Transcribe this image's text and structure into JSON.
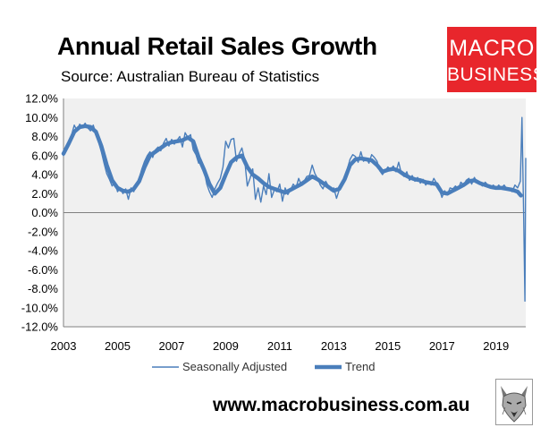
{
  "header": {
    "title": "Annual Retail Sales Growth",
    "subtitle": "Source: Australian Bureau of Statistics"
  },
  "logo": {
    "line1": "MACRO",
    "line2": "BUSINESS",
    "color": "#e8262c"
  },
  "footer": {
    "website": "www.macrobusiness.com.au",
    "mascot_icon": "wolf-icon"
  },
  "chart_data": {
    "type": "line",
    "title": "Annual Retail Sales Growth",
    "subtitle": "Source: Australian Bureau of Statistics",
    "xlabel": "",
    "ylabel": "",
    "xlim": [
      2003,
      2020.1
    ],
    "ylim": [
      -12,
      12
    ],
    "x_ticks": [
      2003,
      2005,
      2007,
      2009,
      2011,
      2013,
      2015,
      2017,
      2019
    ],
    "y_ticks": [
      12,
      10,
      8,
      6,
      4,
      2,
      0,
      -2,
      -4,
      -6,
      -8,
      -10,
      -12
    ],
    "y_tick_labels": [
      "12.0%",
      "10.0%",
      "8.0%",
      "6.0%",
      "4.0%",
      "2.0%",
      "0.0%",
      "-2.0%",
      "-4.0%",
      "-6.0%",
      "-8.0%",
      "-10.0%",
      "-12.0%"
    ],
    "grid": false,
    "plot_background": "#f0f0f0",
    "line_color": "#4a7ebb",
    "legend": "bottom",
    "series": [
      {
        "name": "Seasonally Adjusted",
        "style": "thin",
        "points": [
          [
            2003.0,
            6.0
          ],
          [
            2003.1,
            6.6
          ],
          [
            2003.2,
            7.5
          ],
          [
            2003.3,
            8.2
          ],
          [
            2003.4,
            9.2
          ],
          [
            2003.5,
            8.6
          ],
          [
            2003.6,
            9.3
          ],
          [
            2003.7,
            9.0
          ],
          [
            2003.8,
            9.4
          ],
          [
            2003.9,
            8.9
          ],
          [
            2004.0,
            8.6
          ],
          [
            2004.1,
            9.2
          ],
          [
            2004.2,
            8.3
          ],
          [
            2004.3,
            7.4
          ],
          [
            2004.4,
            6.4
          ],
          [
            2004.5,
            5.2
          ],
          [
            2004.6,
            4.1
          ],
          [
            2004.7,
            3.5
          ],
          [
            2004.8,
            2.8
          ],
          [
            2004.9,
            3.2
          ],
          [
            2005.0,
            2.2
          ],
          [
            2005.1,
            2.6
          ],
          [
            2005.2,
            2.0
          ],
          [
            2005.3,
            2.5
          ],
          [
            2005.4,
            1.4
          ],
          [
            2005.5,
            2.6
          ],
          [
            2005.6,
            2.2
          ],
          [
            2005.7,
            3.0
          ],
          [
            2005.8,
            3.6
          ],
          [
            2005.9,
            4.6
          ],
          [
            2006.0,
            5.4
          ],
          [
            2006.1,
            6.0
          ],
          [
            2006.2,
            6.4
          ],
          [
            2006.3,
            5.8
          ],
          [
            2006.4,
            6.6
          ],
          [
            2006.5,
            6.9
          ],
          [
            2006.6,
            6.5
          ],
          [
            2006.7,
            7.3
          ],
          [
            2006.8,
            7.8
          ],
          [
            2006.9,
            7.0
          ],
          [
            2007.0,
            7.7
          ],
          [
            2007.1,
            7.2
          ],
          [
            2007.2,
            7.6
          ],
          [
            2007.3,
            8.0
          ],
          [
            2007.4,
            6.9
          ],
          [
            2007.5,
            8.4
          ],
          [
            2007.6,
            7.9
          ],
          [
            2007.7,
            8.2
          ],
          [
            2007.8,
            6.6
          ],
          [
            2007.9,
            6.1
          ],
          [
            2008.0,
            5.2
          ],
          [
            2008.1,
            5.5
          ],
          [
            2008.2,
            4.5
          ],
          [
            2008.3,
            3.0
          ],
          [
            2008.4,
            2.2
          ],
          [
            2008.5,
            1.6
          ],
          [
            2008.6,
            2.5
          ],
          [
            2008.7,
            3.1
          ],
          [
            2008.8,
            3.6
          ],
          [
            2008.9,
            4.8
          ],
          [
            2009.0,
            7.5
          ],
          [
            2009.1,
            6.8
          ],
          [
            2009.2,
            7.7
          ],
          [
            2009.3,
            7.8
          ],
          [
            2009.4,
            5.4
          ],
          [
            2009.5,
            6.2
          ],
          [
            2009.6,
            6.8
          ],
          [
            2009.7,
            5.6
          ],
          [
            2009.8,
            2.8
          ],
          [
            2009.9,
            3.6
          ],
          [
            2010.0,
            4.6
          ],
          [
            2010.1,
            1.4
          ],
          [
            2010.2,
            2.6
          ],
          [
            2010.3,
            1.1
          ],
          [
            2010.4,
            2.8
          ],
          [
            2010.5,
            1.9
          ],
          [
            2010.6,
            4.1
          ],
          [
            2010.7,
            1.6
          ],
          [
            2010.8,
            2.4
          ],
          [
            2010.9,
            2.2
          ],
          [
            2011.0,
            3.0
          ],
          [
            2011.1,
            1.2
          ],
          [
            2011.2,
            2.6
          ],
          [
            2011.3,
            1.9
          ],
          [
            2011.4,
            2.4
          ],
          [
            2011.5,
            3.0
          ],
          [
            2011.6,
            2.6
          ],
          [
            2011.7,
            3.6
          ],
          [
            2011.8,
            2.9
          ],
          [
            2011.9,
            3.3
          ],
          [
            2012.0,
            3.8
          ],
          [
            2012.1,
            3.9
          ],
          [
            2012.2,
            5.0
          ],
          [
            2012.3,
            4.1
          ],
          [
            2012.4,
            3.6
          ],
          [
            2012.5,
            2.9
          ],
          [
            2012.6,
            2.5
          ],
          [
            2012.7,
            3.3
          ],
          [
            2012.8,
            2.8
          ],
          [
            2012.9,
            2.3
          ],
          [
            2013.0,
            2.6
          ],
          [
            2013.1,
            1.5
          ],
          [
            2013.2,
            2.4
          ],
          [
            2013.3,
            3.2
          ],
          [
            2013.4,
            3.7
          ],
          [
            2013.5,
            4.6
          ],
          [
            2013.6,
            5.6
          ],
          [
            2013.7,
            6.1
          ],
          [
            2013.8,
            5.9
          ],
          [
            2013.9,
            5.3
          ],
          [
            2014.0,
            6.4
          ],
          [
            2014.1,
            5.4
          ],
          [
            2014.2,
            5.7
          ],
          [
            2014.3,
            5.2
          ],
          [
            2014.4,
            6.1
          ],
          [
            2014.5,
            5.8
          ],
          [
            2014.6,
            5.4
          ],
          [
            2014.7,
            4.4
          ],
          [
            2014.8,
            4.0
          ],
          [
            2014.9,
            4.4
          ],
          [
            2015.0,
            4.8
          ],
          [
            2015.1,
            4.5
          ],
          [
            2015.2,
            4.9
          ],
          [
            2015.3,
            4.3
          ],
          [
            2015.4,
            5.3
          ],
          [
            2015.5,
            4.1
          ],
          [
            2015.6,
            3.8
          ],
          [
            2015.7,
            4.3
          ],
          [
            2015.8,
            3.4
          ],
          [
            2015.9,
            3.9
          ],
          [
            2016.0,
            3.3
          ],
          [
            2016.1,
            3.7
          ],
          [
            2016.2,
            3.1
          ],
          [
            2016.3,
            3.5
          ],
          [
            2016.4,
            2.9
          ],
          [
            2016.5,
            3.3
          ],
          [
            2016.6,
            2.9
          ],
          [
            2016.7,
            3.6
          ],
          [
            2016.8,
            3.1
          ],
          [
            2016.9,
            2.5
          ],
          [
            2017.0,
            1.6
          ],
          [
            2017.1,
            2.3
          ],
          [
            2017.2,
            1.9
          ],
          [
            2017.3,
            2.6
          ],
          [
            2017.4,
            2.5
          ],
          [
            2017.5,
            2.8
          ],
          [
            2017.6,
            2.5
          ],
          [
            2017.7,
            3.2
          ],
          [
            2017.8,
            2.9
          ],
          [
            2017.9,
            3.4
          ],
          [
            2018.0,
            3.6
          ],
          [
            2018.1,
            3.0
          ],
          [
            2018.2,
            3.7
          ],
          [
            2018.3,
            3.2
          ],
          [
            2018.4,
            3.0
          ],
          [
            2018.5,
            2.8
          ],
          [
            2018.6,
            3.2
          ],
          [
            2018.7,
            2.9
          ],
          [
            2018.8,
            2.6
          ],
          [
            2018.9,
            2.9
          ],
          [
            2019.0,
            2.5
          ],
          [
            2019.1,
            2.9
          ],
          [
            2019.2,
            2.6
          ],
          [
            2019.3,
            2.9
          ],
          [
            2019.4,
            2.5
          ],
          [
            2019.5,
            2.4
          ],
          [
            2019.6,
            2.2
          ],
          [
            2019.7,
            2.9
          ],
          [
            2019.8,
            2.6
          ],
          [
            2019.9,
            3.3
          ],
          [
            2019.96,
            10.0
          ],
          [
            2020.02,
            0.2
          ],
          [
            2020.07,
            -9.3
          ],
          [
            2020.1,
            5.7
          ]
        ]
      },
      {
        "name": "Trend",
        "style": "thick",
        "points": [
          [
            2003.0,
            6.2
          ],
          [
            2003.2,
            7.3
          ],
          [
            2003.4,
            8.5
          ],
          [
            2003.6,
            9.0
          ],
          [
            2003.8,
            9.1
          ],
          [
            2004.0,
            9.0
          ],
          [
            2004.2,
            8.5
          ],
          [
            2004.4,
            7.0
          ],
          [
            2004.6,
            5.0
          ],
          [
            2004.8,
            3.4
          ],
          [
            2005.0,
            2.6
          ],
          [
            2005.2,
            2.3
          ],
          [
            2005.4,
            2.2
          ],
          [
            2005.6,
            2.5
          ],
          [
            2005.8,
            3.3
          ],
          [
            2006.0,
            4.8
          ],
          [
            2006.2,
            6.0
          ],
          [
            2006.4,
            6.4
          ],
          [
            2006.6,
            6.8
          ],
          [
            2006.8,
            7.2
          ],
          [
            2007.0,
            7.4
          ],
          [
            2007.2,
            7.5
          ],
          [
            2007.4,
            7.6
          ],
          [
            2007.6,
            7.9
          ],
          [
            2007.8,
            7.5
          ],
          [
            2008.0,
            5.8
          ],
          [
            2008.2,
            4.5
          ],
          [
            2008.4,
            3.0
          ],
          [
            2008.6,
            2.0
          ],
          [
            2008.8,
            2.6
          ],
          [
            2009.0,
            4.0
          ],
          [
            2009.2,
            5.3
          ],
          [
            2009.4,
            5.8
          ],
          [
            2009.6,
            6.0
          ],
          [
            2009.8,
            4.8
          ],
          [
            2010.0,
            4.0
          ],
          [
            2010.2,
            3.6
          ],
          [
            2010.4,
            3.1
          ],
          [
            2010.6,
            2.7
          ],
          [
            2010.8,
            2.5
          ],
          [
            2011.0,
            2.3
          ],
          [
            2011.2,
            2.1
          ],
          [
            2011.4,
            2.4
          ],
          [
            2011.6,
            2.7
          ],
          [
            2011.8,
            3.0
          ],
          [
            2012.0,
            3.4
          ],
          [
            2012.2,
            3.8
          ],
          [
            2012.4,
            3.5
          ],
          [
            2012.6,
            3.1
          ],
          [
            2012.8,
            2.7
          ],
          [
            2013.0,
            2.3
          ],
          [
            2013.2,
            2.5
          ],
          [
            2013.4,
            3.5
          ],
          [
            2013.6,
            5.0
          ],
          [
            2013.8,
            5.6
          ],
          [
            2014.0,
            5.7
          ],
          [
            2014.2,
            5.6
          ],
          [
            2014.4,
            5.5
          ],
          [
            2014.6,
            5.0
          ],
          [
            2014.8,
            4.3
          ],
          [
            2015.0,
            4.5
          ],
          [
            2015.2,
            4.6
          ],
          [
            2015.4,
            4.4
          ],
          [
            2015.6,
            4.0
          ],
          [
            2015.8,
            3.7
          ],
          [
            2016.0,
            3.5
          ],
          [
            2016.2,
            3.4
          ],
          [
            2016.4,
            3.2
          ],
          [
            2016.6,
            3.1
          ],
          [
            2016.8,
            3.0
          ],
          [
            2017.0,
            2.1
          ],
          [
            2017.2,
            2.0
          ],
          [
            2017.4,
            2.3
          ],
          [
            2017.6,
            2.6
          ],
          [
            2017.8,
            2.9
          ],
          [
            2018.0,
            3.3
          ],
          [
            2018.2,
            3.4
          ],
          [
            2018.4,
            3.1
          ],
          [
            2018.6,
            2.9
          ],
          [
            2018.8,
            2.7
          ],
          [
            2019.0,
            2.6
          ],
          [
            2019.2,
            2.6
          ],
          [
            2019.4,
            2.5
          ],
          [
            2019.6,
            2.4
          ],
          [
            2019.8,
            2.2
          ],
          [
            2019.92,
            1.8
          ]
        ]
      }
    ]
  }
}
